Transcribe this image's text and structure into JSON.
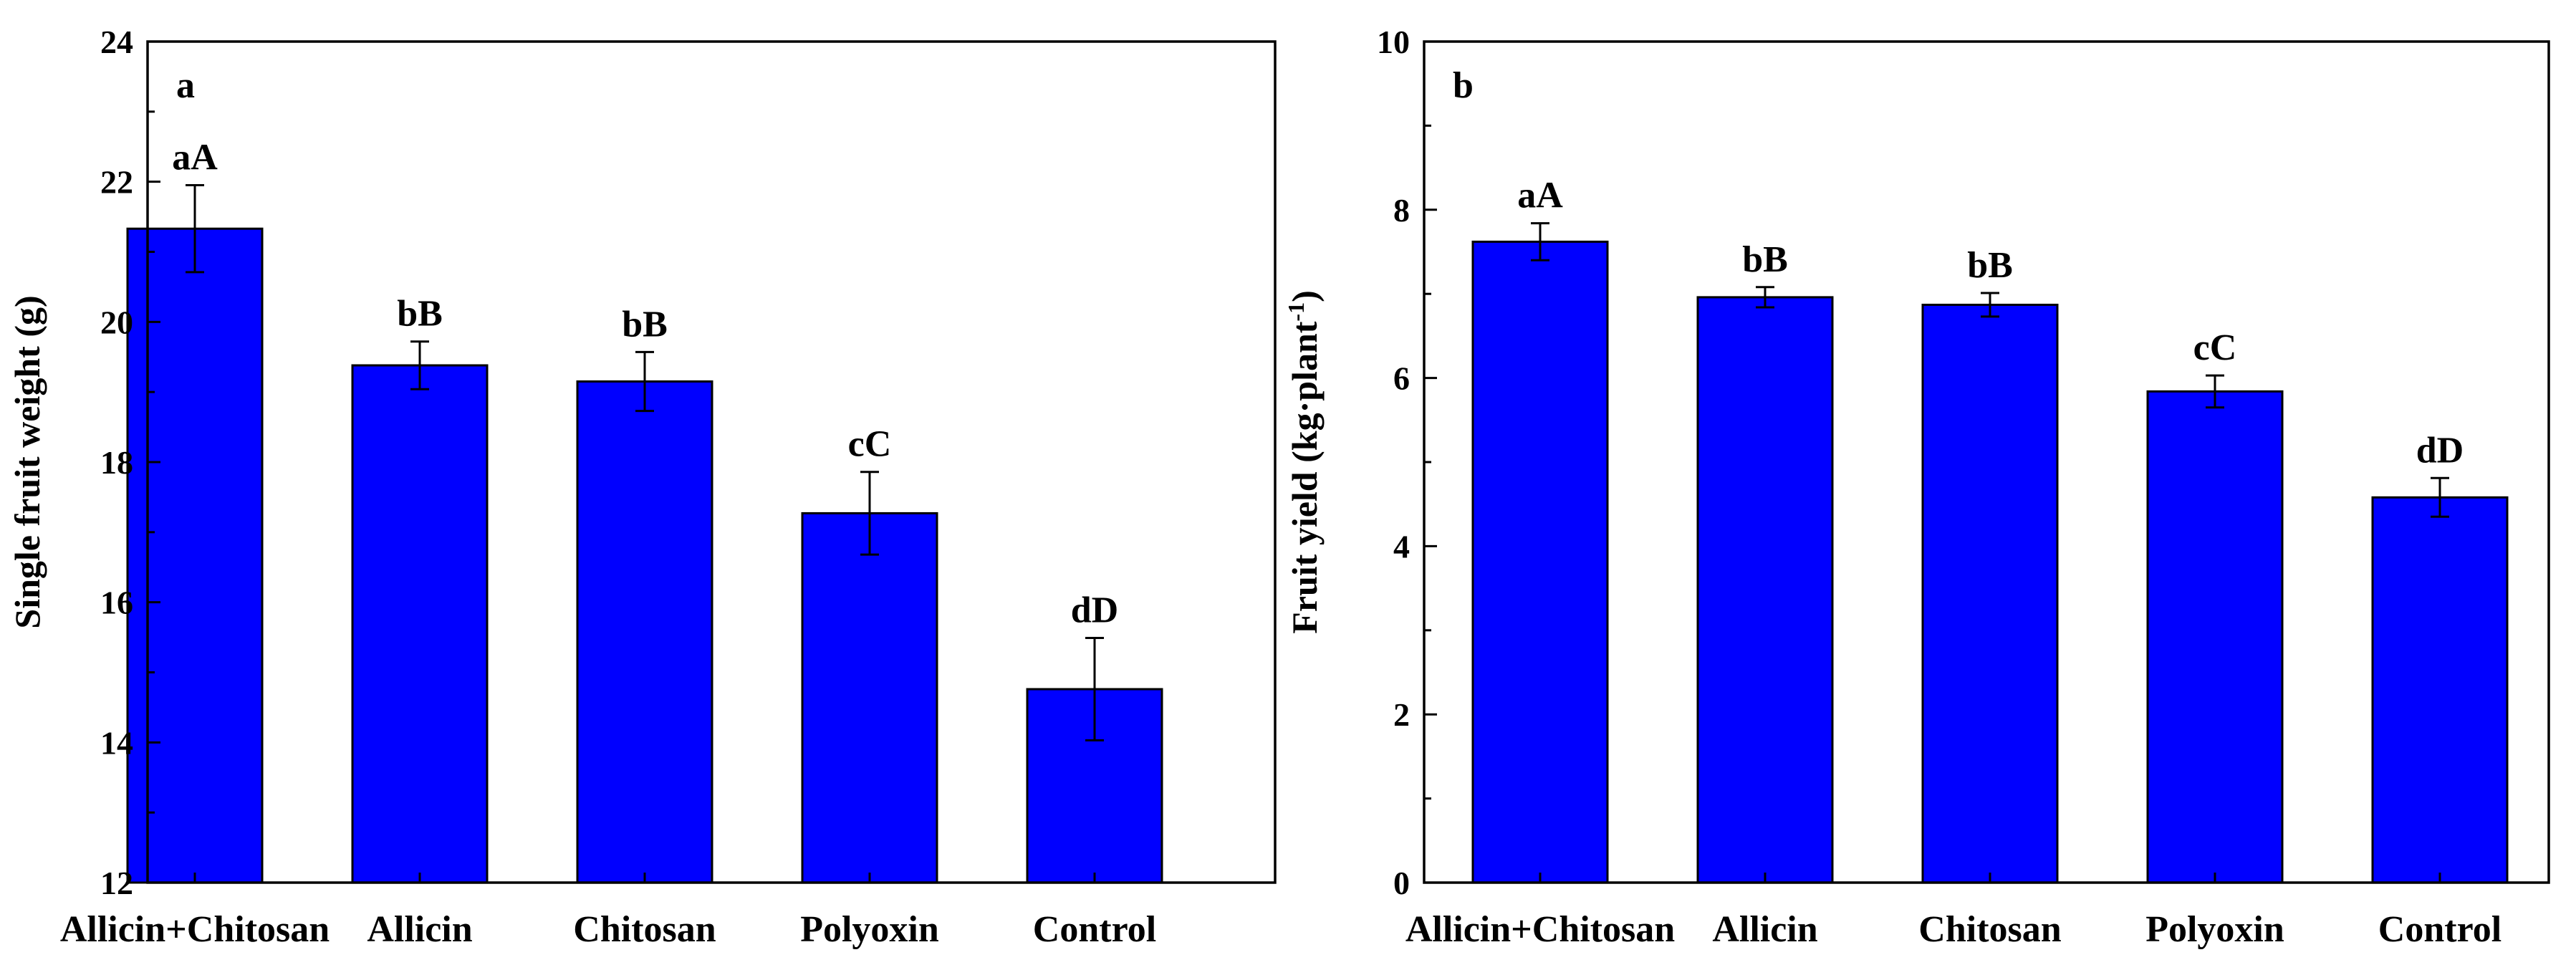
{
  "chart_data": [
    {
      "type": "bar",
      "panel_label": "a",
      "ylabel": "Single fruit weight (g)",
      "ylim": [
        12,
        24
      ],
      "yticks": [
        12,
        14,
        16,
        18,
        20,
        22,
        24
      ],
      "categories": [
        "Allicin+Chitosan",
        "Allicin",
        "Chitosan",
        "Polyoxin",
        "Control"
      ],
      "values": [
        21.33,
        19.38,
        19.15,
        17.27,
        14.76
      ],
      "errors": [
        0.62,
        0.34,
        0.42,
        0.59,
        0.73
      ],
      "significance": [
        "aA",
        "bB",
        "bB",
        "cC",
        "dD"
      ],
      "bar_color": "#0000ff"
    },
    {
      "type": "bar",
      "panel_label": "b",
      "ylabel": "Fruit yield (kg·plant",
      "ylabel_sup": "-1",
      "ylabel_end": ")",
      "ylim": [
        0,
        10
      ],
      "yticks": [
        0,
        2,
        4,
        6,
        8,
        10
      ],
      "categories": [
        "Allicin+Chitosan",
        "Allicin",
        "Chitosan",
        "Polyoxin",
        "Control"
      ],
      "values": [
        7.62,
        6.96,
        6.87,
        5.84,
        4.58
      ],
      "errors": [
        0.22,
        0.12,
        0.14,
        0.19,
        0.23
      ],
      "significance": [
        "aA",
        "bB",
        "bB",
        "cC",
        "dD"
      ],
      "bar_color": "#0000ff"
    }
  ]
}
